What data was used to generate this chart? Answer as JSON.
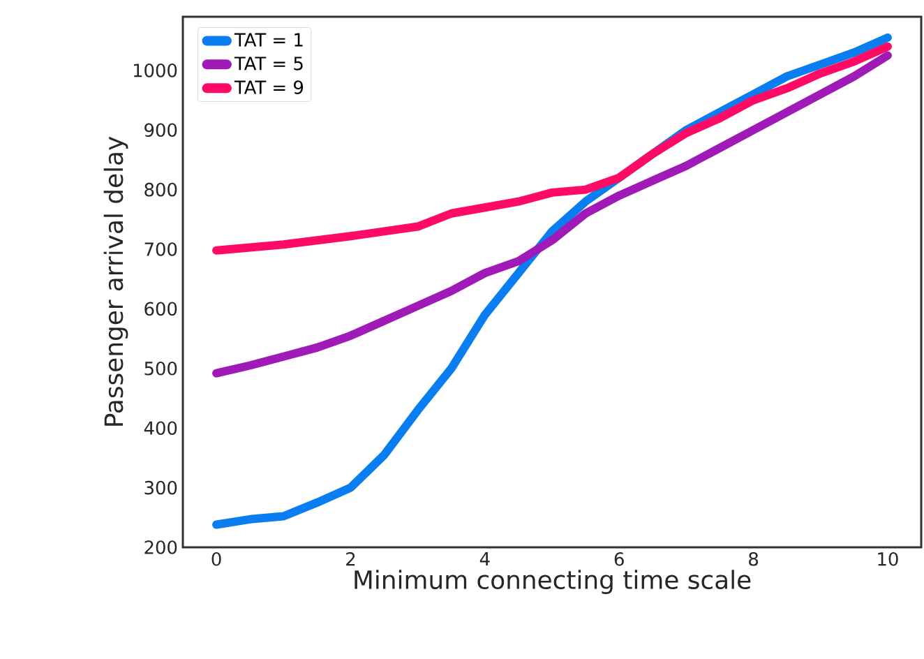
{
  "chart_data": {
    "type": "line",
    "xlabel": "Minimum connecting time scale",
    "ylabel": "Passenger arrival delay",
    "x": [
      0,
      0.5,
      1,
      1.5,
      2,
      2.5,
      3,
      3.5,
      4,
      4.5,
      5,
      5.5,
      6,
      6.5,
      7,
      7.5,
      8,
      8.5,
      9,
      9.5,
      10
    ],
    "series": [
      {
        "name": "TAT = 1",
        "color": "#0a7ef0",
        "values": [
          238,
          247,
          252,
          275,
          300,
          355,
          430,
          500,
          590,
          660,
          730,
          780,
          820,
          860,
          900,
          930,
          960,
          990,
          1010,
          1030,
          1055
        ]
      },
      {
        "name": "TAT = 5",
        "color": "#a01ab8",
        "values": [
          492,
          505,
          520,
          535,
          555,
          580,
          605,
          630,
          660,
          680,
          715,
          760,
          790,
          815,
          840,
          870,
          900,
          930,
          960,
          990,
          1025
        ]
      },
      {
        "name": "TAT = 9",
        "color": "#ff0a64",
        "values": [
          698,
          703,
          708,
          715,
          722,
          730,
          738,
          760,
          770,
          780,
          795,
          800,
          820,
          860,
          895,
          920,
          950,
          970,
          995,
          1015,
          1040
        ]
      }
    ],
    "xlim": [
      -0.5,
      10.5
    ],
    "ylim": [
      200,
      1090
    ],
    "xticks": [
      0,
      2,
      4,
      6,
      8,
      10
    ],
    "yticks": [
      200,
      300,
      400,
      500,
      600,
      700,
      800,
      900,
      1000
    ],
    "grid": false,
    "legend": "top left",
    "marker": "none",
    "line_style": "solid"
  }
}
